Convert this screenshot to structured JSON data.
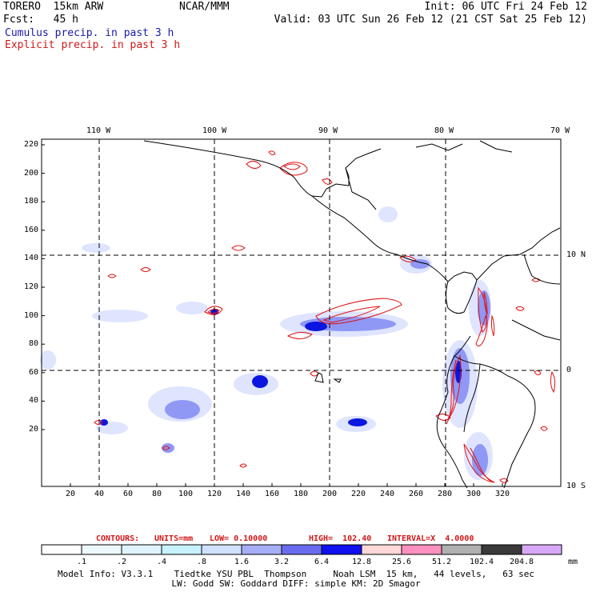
{
  "header": {
    "model": "TORERO  15km ARW",
    "org": "NCAR/MMM",
    "init": "Init: 06 UTC Fri 24 Feb 12",
    "fcst": "Fcst:   45 h",
    "valid": "Valid: 03 UTC Sun 26 Feb 12 (21 CST Sat 25 Feb 12)",
    "field1": "Cumulus precip. in past 3 h",
    "field2": "Explicit precip. in past 3 h"
  },
  "map": {
    "lon_labels": [
      "110 W",
      "100 W",
      "90 W",
      "80 W",
      "70 W"
    ],
    "lat_labels": [
      "10 N",
      "0",
      "10 S"
    ],
    "y_ticks": [
      "220",
      "200",
      "180",
      "160",
      "140",
      "120",
      "100",
      "80",
      "60",
      "40",
      "20"
    ],
    "x_ticks": [
      "20",
      "40",
      "60",
      "80",
      "100",
      "120",
      "140",
      "160",
      "180",
      "200",
      "220",
      "240",
      "260",
      "280",
      "300",
      "320"
    ],
    "grid": "dashed lat/lon lines",
    "colors": {
      "coast": "#000000",
      "explicit_contour": "#e01010",
      "cumulus_light": "#dfe4ff",
      "cumulus_mid": "#8f98f5",
      "cumulus_heavy": "#0c16e0"
    }
  },
  "contours": {
    "label": "CONTOURS:",
    "units": "UNITS=mm",
    "low": "LOW= 0.10000",
    "high": "HIGH=  102.40",
    "interval": "INTERVAL=X  4.0000"
  },
  "colorbar": {
    "units": "mm",
    "labels": [
      ".1",
      ".2",
      ".4",
      ".8",
      "1.6",
      "3.2",
      "6.4",
      "12.8",
      "25.6",
      "51.2",
      "102.4",
      "204.8"
    ],
    "colors": [
      "#ffffff",
      "#eef8ff",
      "#dff4ff",
      "#c6f2ff",
      "#d0e0ff",
      "#a6aef8",
      "#6a6cf0",
      "#1010f0",
      "#ffd8d8",
      "#ff90c0",
      "#b0b0b0",
      "#3a3a3a",
      "#d8a8f8"
    ]
  },
  "footer": {
    "line1": "Model Info: V3.3.1    Tiedtke YSU PBL  Thompson     Noah LSM  15 km,   44 levels,   63 sec",
    "line2": "LW: Godd SW: Goddard DIFF: simple KM: 2D Smagor"
  }
}
